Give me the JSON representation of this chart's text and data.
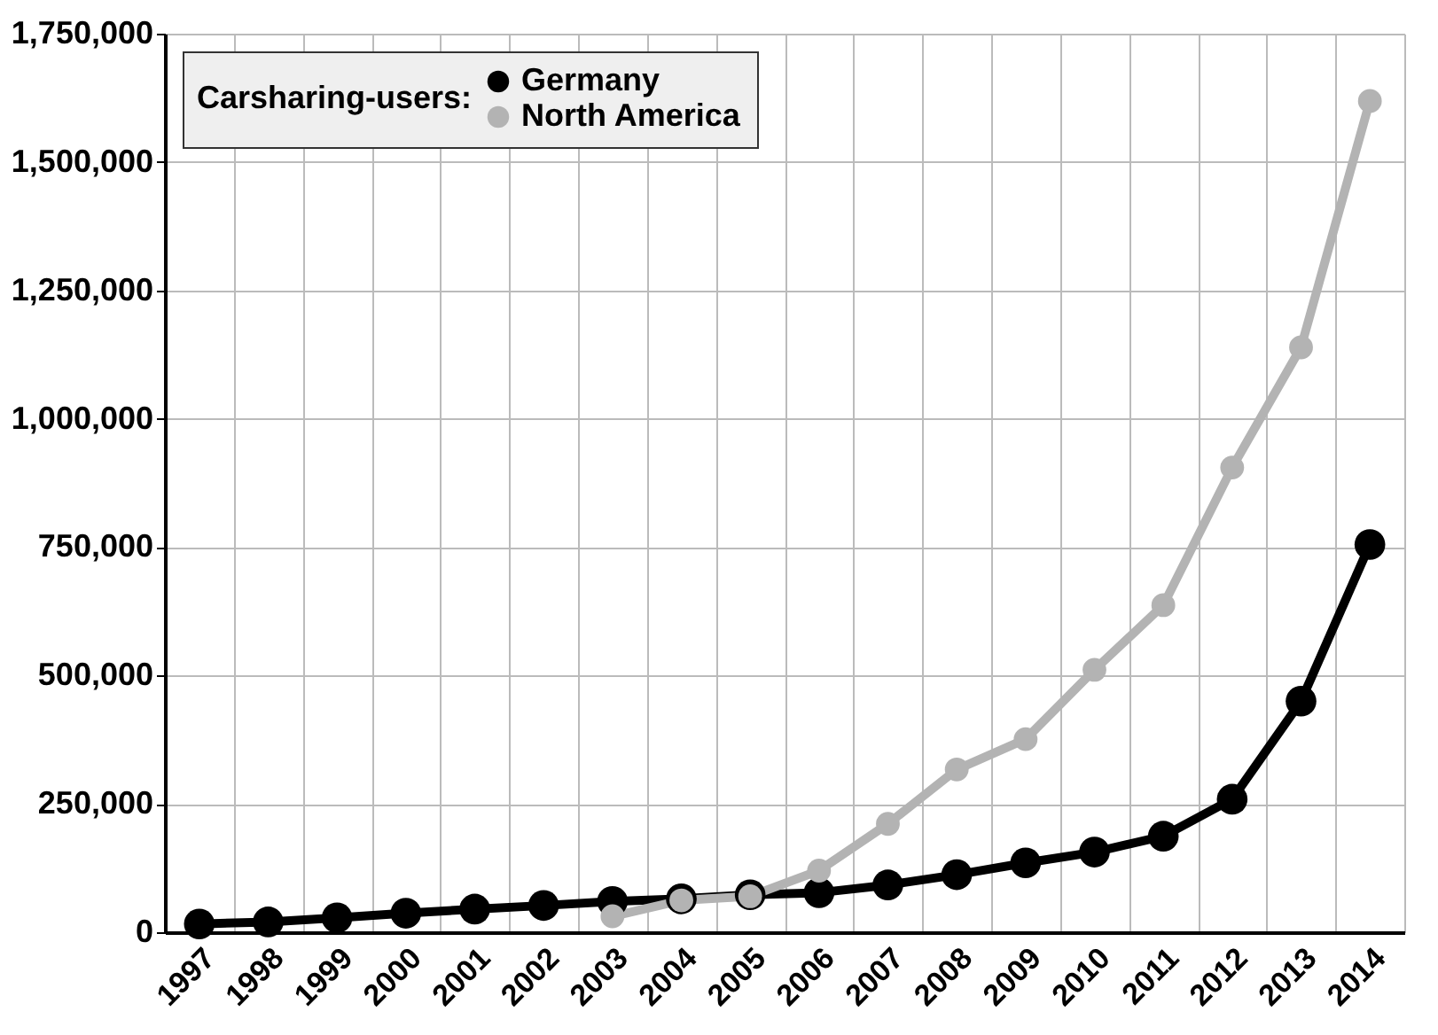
{
  "chart_data": {
    "type": "line",
    "legend_title": "Carsharing-users:",
    "categories": [
      "1997",
      "1998",
      "1999",
      "2000",
      "2001",
      "2002",
      "2003",
      "2004",
      "2005",
      "2006",
      "2007",
      "2008",
      "2009",
      "2010",
      "2011",
      "2012",
      "2013",
      "2014"
    ],
    "series": [
      {
        "name": "Germany",
        "color": "#000000",
        "values": [
          16000,
          20000,
          28000,
          37000,
          45000,
          52000,
          60000,
          65000,
          73000,
          77000,
          92000,
          112000,
          135000,
          156000,
          187000,
          259000,
          450000,
          755000
        ]
      },
      {
        "name": "North America",
        "color": "#b3b3b3",
        "values": [
          null,
          null,
          null,
          null,
          null,
          null,
          31000,
          62000,
          70000,
          120000,
          211000,
          317000,
          376000,
          511000,
          637000,
          905000,
          1139000,
          1619000
        ]
      }
    ],
    "ylim": [
      0,
      1750000
    ],
    "yticks": [
      0,
      {
        "value": 250000,
        "label": "250,000"
      },
      {
        "value": 500000,
        "label": "500,000"
      },
      {
        "value": 750000,
        "label": "750,000"
      },
      {
        "value": 1000000,
        "label": "1,000,000"
      },
      {
        "value": 1250000,
        "label": "1,250,000"
      },
      {
        "value": 1500000,
        "label": "1,500,000"
      },
      {
        "value": 1750000,
        "label": "1,750,000"
      }
    ],
    "grid": true,
    "legend": "top left",
    "marker": "circle",
    "line_style": "solid"
  }
}
